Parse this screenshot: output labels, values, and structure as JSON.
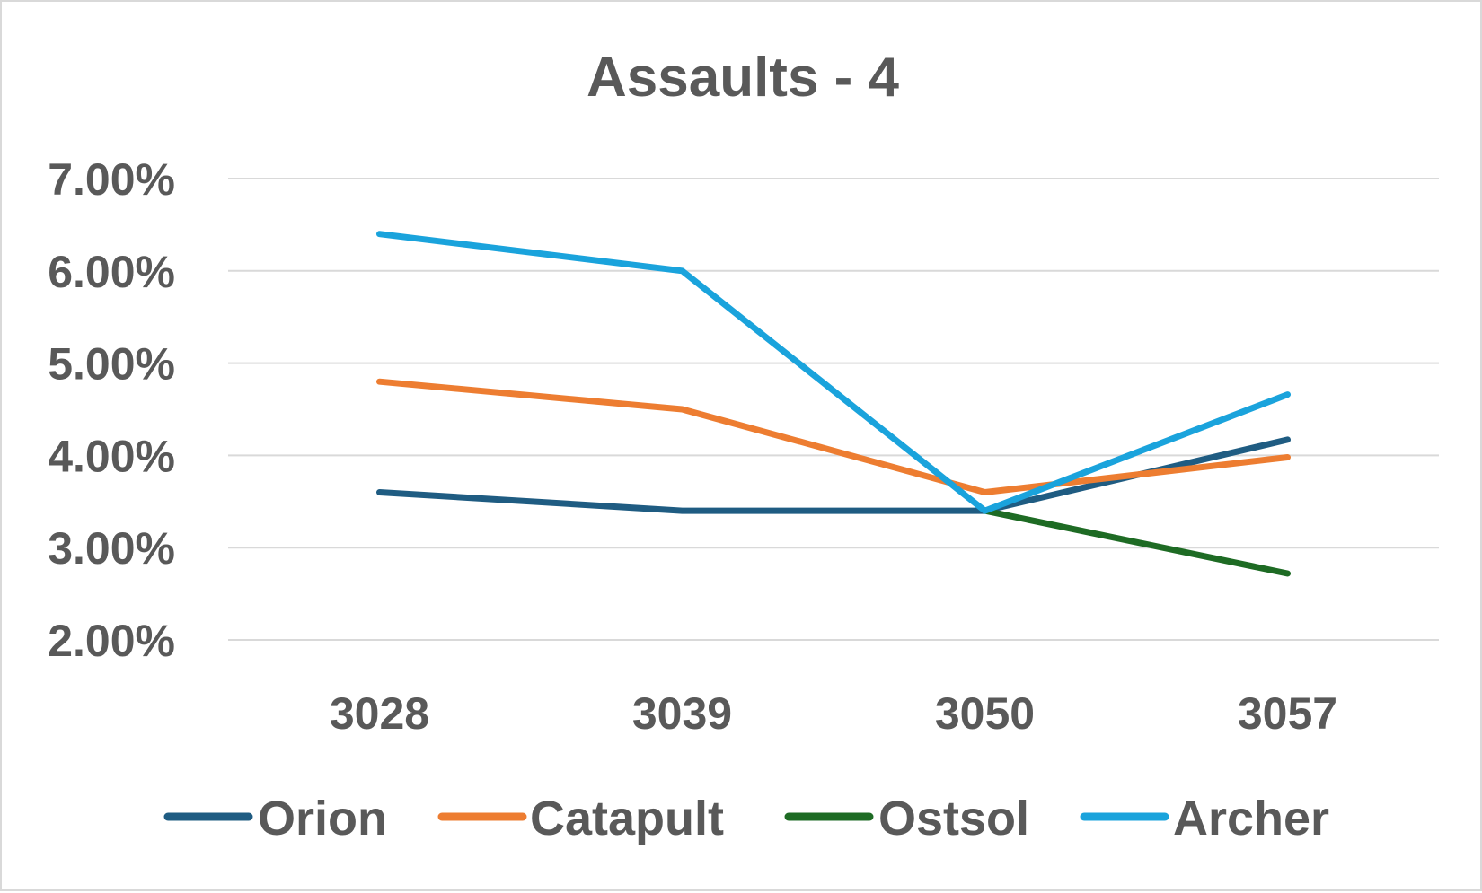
{
  "chart_data": {
    "type": "line",
    "title": "Assaults - 4",
    "xlabel": "",
    "ylabel": "",
    "categories": [
      "3028",
      "3039",
      "3050",
      "3057"
    ],
    "y_tick_labels": [
      "2.00%",
      "3.00%",
      "4.00%",
      "5.00%",
      "6.00%",
      "7.00%"
    ],
    "ylim": [
      2.0,
      7.0
    ],
    "y_unit": "percent",
    "grid": true,
    "legend_position": "bottom",
    "series": [
      {
        "name": "Orion",
        "color": "#1f5c82",
        "values": [
          3.6,
          3.4,
          3.4,
          4.17
        ]
      },
      {
        "name": "Catapult",
        "color": "#ed7d31",
        "values": [
          4.8,
          4.5,
          3.6,
          3.98
        ]
      },
      {
        "name": "Ostsol",
        "color": "#1e6b24",
        "values": [
          null,
          null,
          3.4,
          2.72
        ]
      },
      {
        "name": "Archer",
        "color": "#1aa3dc",
        "values": [
          6.4,
          6.0,
          3.4,
          4.66
        ]
      }
    ]
  }
}
